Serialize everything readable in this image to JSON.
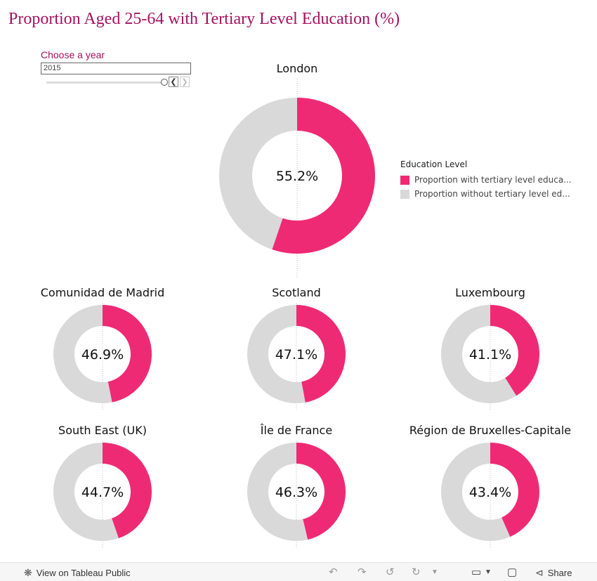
{
  "title": "Proportion Aged 25-64 with Tertiary Level Education (%)",
  "filter": {
    "label": "Choose a year",
    "value": "2015"
  },
  "legend": {
    "title": "Education Level",
    "items": [
      {
        "label": "Proportion with tertiary level educa...",
        "color": "#ef2a74"
      },
      {
        "label": "Proportion without tertiary level ed...",
        "color": "#d9d9da"
      }
    ]
  },
  "chart_data": {
    "type": "pie",
    "subtype": "donut",
    "year": "2015",
    "colors": {
      "with": "#ef2a74",
      "without": "#d9d9da"
    },
    "regions": [
      {
        "name": "London",
        "with_pct": 55.2,
        "without_pct": 44.8,
        "label": "55.2%"
      },
      {
        "name": "Comunidad de Madrid",
        "with_pct": 46.9,
        "without_pct": 53.1,
        "label": "46.9%"
      },
      {
        "name": "Scotland",
        "with_pct": 47.1,
        "without_pct": 52.9,
        "label": "47.1%"
      },
      {
        "name": "Luxembourg",
        "with_pct": 41.1,
        "without_pct": 58.9,
        "label": "41.1%"
      },
      {
        "name": "South East (UK)",
        "with_pct": 44.7,
        "without_pct": 55.3,
        "label": "44.7%"
      },
      {
        "name": "Île de France",
        "with_pct": 46.3,
        "without_pct": 53.7,
        "label": "46.3%"
      },
      {
        "name": "Région de Bruxelles-Capitale",
        "with_pct": 43.4,
        "without_pct": 56.6,
        "label": "43.4%"
      }
    ]
  },
  "footer": {
    "view_label": "View on Tableau Public",
    "share_label": "Share",
    "icons": [
      "tableau-logo-icon",
      "undo-icon",
      "redo-icon",
      "revert-icon",
      "refresh-icon",
      "download-icon",
      "fullscreen-icon",
      "share-icon"
    ]
  }
}
